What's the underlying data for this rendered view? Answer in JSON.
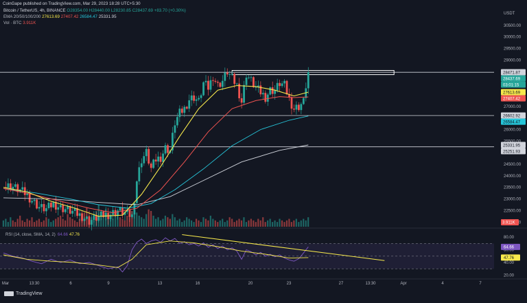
{
  "header": {
    "published": "CoinGape published on TradingView.com, Mar 29, 2023 18:28 UTC+5:30",
    "symbol": "Bitcoin / TetherUS, 4h, BINANCE",
    "ohlc": "O28354.00 H28440.00 L28230.85 C28437.69 +83.70 (+0.30%)",
    "ema_label": "EMA 20/50/100/200",
    "ema_values": [
      "27613.69",
      "27407.42",
      "26584.47",
      "25331.95"
    ],
    "vol_label": "Vol · BTC",
    "vol_value": "3.911K"
  },
  "footer": {
    "brand": "TradingView"
  },
  "colors": {
    "background": "#131722",
    "up": "#26a69a",
    "down": "#ef5350",
    "ema20": "#f7e94c",
    "ema50": "#ef5350",
    "ema100": "#26c6da",
    "ema200": "#d1d4dc",
    "rsi": "#7e57c2",
    "rsi_ma": "#f7e94c"
  },
  "chart_data": [
    {
      "type": "candlestick",
      "pair": "USDT",
      "ylim": [
        21800,
        31000
      ],
      "y_ticks": [
        22000,
        22500,
        23000,
        23500,
        24000,
        24500,
        25000,
        25500,
        26000,
        26500,
        27000,
        27500,
        28000,
        28500,
        29000,
        29500,
        30000,
        30500
      ],
      "x_ticks": [
        "Mar",
        "13:30",
        "6",
        "9",
        "13",
        "16",
        "20",
        "23",
        "27",
        "13:30",
        "Apr",
        "4",
        "7"
      ],
      "price_labels": [
        {
          "text": "28471.87",
          "value": 28471.87,
          "style": "white"
        },
        {
          "text": "28437.69",
          "value": 28437.69,
          "style": "up"
        },
        {
          "text": "03:01:15",
          "value": 28180,
          "style": "up"
        },
        {
          "text": "27613.69",
          "value": 27613.69,
          "style": "ema20"
        },
        {
          "text": "27407.42",
          "value": 27407.42,
          "style": "ema50"
        },
        {
          "text": "26602.92",
          "value": 26602.92,
          "style": "white"
        },
        {
          "text": "26584.47",
          "value": 26584.47,
          "style": "ema100"
        },
        {
          "text": "25331.95",
          "value": 25331.95,
          "style": "white"
        },
        {
          "text": "25251.93",
          "value": 25251.93,
          "style": "white"
        }
      ],
      "volume_label": "3.911K",
      "levels": [
        28471.87,
        26602.92,
        25251.93
      ],
      "resistance_box": [
        28400,
        28520
      ],
      "price_path": [
        [
          0,
          23500
        ],
        [
          3,
          23580
        ],
        [
          6,
          23420
        ],
        [
          9,
          23250
        ],
        [
          12,
          22950
        ],
        [
          15,
          22650
        ],
        [
          18,
          22560
        ],
        [
          21,
          22800
        ],
        [
          24,
          22620
        ],
        [
          27,
          22530
        ],
        [
          30,
          22400
        ],
        [
          33,
          22250
        ],
        [
          36,
          22050
        ],
        [
          39,
          22180
        ],
        [
          42,
          22300
        ],
        [
          45,
          22350
        ],
        [
          48,
          22500
        ],
        [
          51,
          22400
        ],
        [
          54,
          22250
        ],
        [
          56,
          23800
        ],
        [
          58,
          24700
        ],
        [
          60,
          25000
        ],
        [
          62,
          24300
        ],
        [
          64,
          24700
        ],
        [
          66,
          24800
        ],
        [
          68,
          25200
        ],
        [
          70,
          25100
        ],
        [
          72,
          26300
        ],
        [
          74,
          26700
        ],
        [
          76,
          26900
        ],
        [
          78,
          27300
        ],
        [
          80,
          27400
        ],
        [
          82,
          27200
        ],
        [
          84,
          28000
        ],
        [
          86,
          27800
        ],
        [
          88,
          28300
        ],
        [
          90,
          27900
        ],
        [
          92,
          28100
        ],
        [
          94,
          28500
        ],
        [
          96,
          28200
        ],
        [
          98,
          27900
        ],
        [
          100,
          27200
        ],
        [
          102,
          28400
        ],
        [
          104,
          28100
        ],
        [
          106,
          27800
        ],
        [
          108,
          27600
        ],
        [
          110,
          27400
        ],
        [
          112,
          27700
        ],
        [
          114,
          27700
        ],
        [
          116,
          28000
        ],
        [
          118,
          27900
        ],
        [
          120,
          27300
        ],
        [
          122,
          26900
        ],
        [
          124,
          27000
        ],
        [
          126,
          27200
        ],
        [
          127,
          27900
        ],
        [
          128,
          28437
        ]
      ],
      "ema20": [
        [
          0,
          23500
        ],
        [
          10,
          23300
        ],
        [
          20,
          22900
        ],
        [
          30,
          22600
        ],
        [
          40,
          22250
        ],
        [
          50,
          22300
        ],
        [
          58,
          23200
        ],
        [
          66,
          24400
        ],
        [
          74,
          25700
        ],
        [
          82,
          26900
        ],
        [
          90,
          27700
        ],
        [
          98,
          27900
        ],
        [
          106,
          27850
        ],
        [
          114,
          27700
        ],
        [
          122,
          27450
        ],
        [
          128,
          27614
        ]
      ],
      "ema50": [
        [
          0,
          23450
        ],
        [
          12,
          23200
        ],
        [
          24,
          22900
        ],
        [
          36,
          22600
        ],
        [
          46,
          22400
        ],
        [
          56,
          22600
        ],
        [
          66,
          23400
        ],
        [
          76,
          24600
        ],
        [
          86,
          25900
        ],
        [
          96,
          26900
        ],
        [
          106,
          27250
        ],
        [
          116,
          27420
        ],
        [
          122,
          27380
        ],
        [
          128,
          27407
        ]
      ],
      "ema100": [
        [
          0,
          23450
        ],
        [
          14,
          23250
        ],
        [
          28,
          23000
        ],
        [
          40,
          22750
        ],
        [
          52,
          22600
        ],
        [
          62,
          22800
        ],
        [
          72,
          23400
        ],
        [
          84,
          24300
        ],
        [
          96,
          25300
        ],
        [
          108,
          26000
        ],
        [
          120,
          26400
        ],
        [
          128,
          26584
        ]
      ],
      "ema200": [
        [
          0,
          23050
        ],
        [
          20,
          23000
        ],
        [
          40,
          22850
        ],
        [
          56,
          22750
        ],
        [
          70,
          23100
        ],
        [
          84,
          23800
        ],
        [
          100,
          24600
        ],
        [
          116,
          25100
        ],
        [
          128,
          25332
        ]
      ],
      "volume": [
        4,
        5,
        3,
        6,
        4,
        3,
        5,
        7,
        4,
        3,
        5,
        4,
        6,
        3,
        4,
        5,
        3,
        4,
        6,
        5,
        3,
        4,
        5,
        6,
        7,
        5,
        4,
        8,
        6,
        5,
        4,
        3,
        5,
        6,
        9,
        12,
        7,
        6,
        8,
        10,
        14,
        9,
        8,
        11,
        7,
        6,
        5,
        8,
        9,
        6,
        5,
        4,
        7,
        6,
        10,
        12,
        9,
        7,
        6,
        5,
        8,
        11,
        10,
        7,
        5,
        6,
        4,
        5,
        7,
        6,
        5,
        8,
        6,
        4,
        5,
        3,
        4,
        6,
        5,
        4,
        3,
        5,
        4,
        3,
        6,
        5,
        4,
        7,
        5,
        4,
        3,
        4,
        5,
        3,
        4,
        6,
        5,
        3,
        4,
        5,
        4,
        6,
        3,
        4,
        5,
        4,
        3,
        5,
        4,
        6,
        3,
        4,
        5,
        3,
        4,
        3,
        5,
        4,
        3,
        4,
        5,
        3,
        4,
        5,
        3,
        4,
        5,
        4,
        6
      ]
    },
    {
      "type": "line",
      "title": "RSI (14, close, SMA, 14, 2)",
      "values_text": [
        "64.66",
        "47.76"
      ],
      "ylim": [
        15,
        90
      ],
      "y_ticks": [
        20,
        40,
        60,
        80
      ],
      "band": [
        30,
        70
      ],
      "rsi": [
        [
          0,
          55
        ],
        [
          4,
          50
        ],
        [
          8,
          47
        ],
        [
          12,
          42
        ],
        [
          16,
          38
        ],
        [
          20,
          45
        ],
        [
          24,
          40
        ],
        [
          28,
          44
        ],
        [
          32,
          38
        ],
        [
          36,
          40
        ],
        [
          40,
          35
        ],
        [
          44,
          30
        ],
        [
          48,
          33
        ],
        [
          50,
          25
        ],
        [
          52,
          35
        ],
        [
          54,
          60
        ],
        [
          56,
          72
        ],
        [
          58,
          77
        ],
        [
          60,
          70
        ],
        [
          62,
          74
        ],
        [
          64,
          76
        ],
        [
          66,
          72
        ],
        [
          68,
          79
        ],
        [
          70,
          74
        ],
        [
          72,
          78
        ],
        [
          74,
          70
        ],
        [
          76,
          73
        ],
        [
          78,
          68
        ],
        [
          80,
          70
        ],
        [
          82,
          66
        ],
        [
          84,
          71
        ],
        [
          86,
          64
        ],
        [
          88,
          68
        ],
        [
          90,
          62
        ],
        [
          92,
          66
        ],
        [
          94,
          60
        ],
        [
          96,
          63
        ],
        [
          98,
          58
        ],
        [
          100,
          45
        ],
        [
          102,
          60
        ],
        [
          104,
          57
        ],
        [
          106,
          52
        ],
        [
          108,
          56
        ],
        [
          110,
          50
        ],
        [
          112,
          53
        ],
        [
          114,
          49
        ],
        [
          116,
          52
        ],
        [
          118,
          47
        ],
        [
          120,
          44
        ],
        [
          122,
          42
        ],
        [
          124,
          46
        ],
        [
          126,
          55
        ],
        [
          128,
          64.66
        ]
      ],
      "rsi_ma": [
        [
          0,
          52
        ],
        [
          10,
          45
        ],
        [
          20,
          42
        ],
        [
          30,
          40
        ],
        [
          40,
          36
        ],
        [
          48,
          32
        ],
        [
          54,
          45
        ],
        [
          60,
          68
        ],
        [
          70,
          74
        ],
        [
          80,
          71
        ],
        [
          90,
          65
        ],
        [
          100,
          58
        ],
        [
          110,
          53
        ],
        [
          120,
          47
        ],
        [
          128,
          47.76
        ]
      ],
      "trendline": [
        [
          75,
          84
        ],
        [
          160,
          43
        ]
      ]
    }
  ]
}
